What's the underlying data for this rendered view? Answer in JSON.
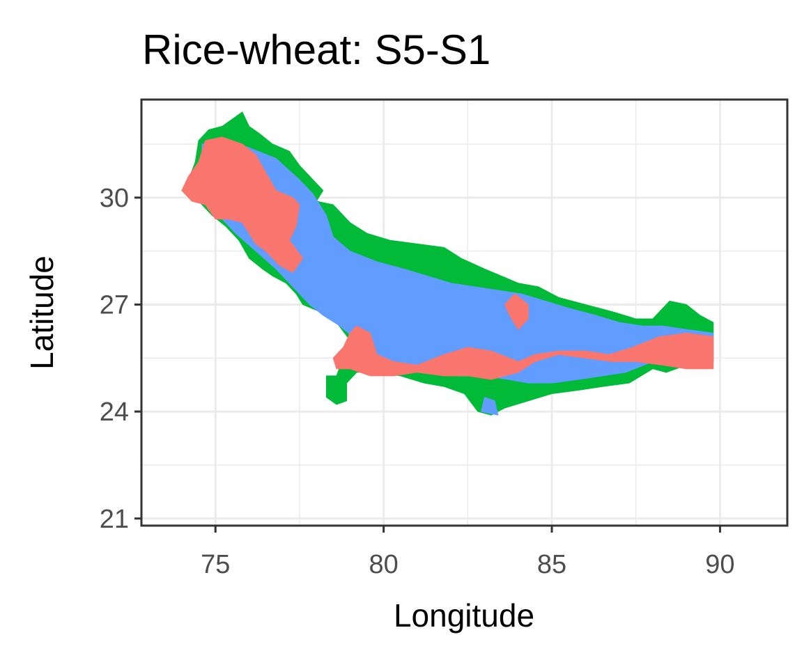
{
  "chart_data": {
    "type": "map",
    "title": "Rice-wheat: S5-S1",
    "xlabel": "Longitude",
    "ylabel": "Latitude",
    "xlim": [
      72.8,
      92.0
    ],
    "ylim": [
      20.8,
      32.75
    ],
    "xticks": [
      75,
      80,
      85,
      90
    ],
    "yticks": [
      21,
      24,
      27,
      30
    ],
    "x_minor": [
      77.5,
      82.5,
      87.5
    ],
    "y_minor": [
      22.5,
      25.5,
      28.5,
      31.5
    ],
    "grid": true,
    "legend": "none",
    "colors": {
      "red": "#f8766d",
      "green": "#00ba38",
      "blue": "#619cff"
    },
    "regions": [
      {
        "category": "green",
        "polygons": [
          [
            [
              74.0,
              30.2
            ],
            [
              74.2,
              30.5
            ],
            [
              74.4,
              31.0
            ],
            [
              74.5,
              31.6
            ],
            [
              74.8,
              31.9
            ],
            [
              75.2,
              32.0
            ],
            [
              75.5,
              32.2
            ],
            [
              75.8,
              32.4
            ],
            [
              76.0,
              32.0
            ],
            [
              76.3,
              31.8
            ],
            [
              76.7,
              31.5
            ],
            [
              77.2,
              31.3
            ],
            [
              77.5,
              30.9
            ],
            [
              77.8,
              30.6
            ],
            [
              78.2,
              30.2
            ],
            [
              78.0,
              29.9
            ],
            [
              78.5,
              29.8
            ],
            [
              79.0,
              29.3
            ],
            [
              79.5,
              29.0
            ],
            [
              80.2,
              28.8
            ],
            [
              81.0,
              28.7
            ],
            [
              81.8,
              28.6
            ],
            [
              82.3,
              28.3
            ],
            [
              83.0,
              28.0
            ],
            [
              83.5,
              27.8
            ],
            [
              84.0,
              27.6
            ],
            [
              84.6,
              27.5
            ],
            [
              85.2,
              27.2
            ],
            [
              86.0,
              27.0
            ],
            [
              86.8,
              26.8
            ],
            [
              87.5,
              26.6
            ],
            [
              88.0,
              26.6
            ],
            [
              88.5,
              27.1
            ],
            [
              89.0,
              27.0
            ],
            [
              89.4,
              26.7
            ],
            [
              89.8,
              26.5
            ],
            [
              89.8,
              25.4
            ],
            [
              89.0,
              25.3
            ],
            [
              88.4,
              25.1
            ],
            [
              88.0,
              25.2
            ],
            [
              87.3,
              24.8
            ],
            [
              86.5,
              24.7
            ],
            [
              85.8,
              24.6
            ],
            [
              85.0,
              24.5
            ],
            [
              84.3,
              24.3
            ],
            [
              83.6,
              24.1
            ],
            [
              83.2,
              23.9
            ],
            [
              82.8,
              24.0
            ],
            [
              82.4,
              24.5
            ],
            [
              81.8,
              24.7
            ],
            [
              81.2,
              24.8
            ],
            [
              80.5,
              25.0
            ],
            [
              79.8,
              25.1
            ],
            [
              79.2,
              25.1
            ],
            [
              78.9,
              24.8
            ],
            [
              78.9,
              24.3
            ],
            [
              78.6,
              24.2
            ],
            [
              78.3,
              24.4
            ],
            [
              78.3,
              24.9
            ],
            [
              78.6,
              25.0
            ],
            [
              78.8,
              25.5
            ],
            [
              79.0,
              26.0
            ],
            [
              78.6,
              26.5
            ],
            [
              78.1,
              26.8
            ],
            [
              77.6,
              27.0
            ],
            [
              77.4,
              27.3
            ],
            [
              77.1,
              27.6
            ],
            [
              76.7,
              27.8
            ],
            [
              76.4,
              28.0
            ],
            [
              76.0,
              28.3
            ],
            [
              75.7,
              28.8
            ],
            [
              75.3,
              29.2
            ],
            [
              74.9,
              29.5
            ],
            [
              74.5,
              29.9
            ]
          ],
          [
            [
              78.3,
              25.0
            ],
            [
              78.7,
              25.0
            ],
            [
              78.9,
              24.4
            ],
            [
              78.6,
              24.2
            ],
            [
              78.3,
              24.5
            ]
          ]
        ]
      },
      {
        "category": "blue",
        "polygons": [
          [
            [
              74.6,
              31.5
            ],
            [
              75.3,
              31.6
            ],
            [
              76.0,
              31.4
            ],
            [
              76.8,
              31.1
            ],
            [
              77.5,
              30.5
            ],
            [
              77.9,
              30.1
            ],
            [
              78.3,
              29.5
            ],
            [
              78.5,
              28.9
            ],
            [
              79.0,
              28.5
            ],
            [
              79.8,
              28.2
            ],
            [
              80.6,
              28.0
            ],
            [
              81.3,
              27.8
            ],
            [
              82.0,
              27.6
            ],
            [
              82.7,
              27.5
            ],
            [
              83.4,
              27.4
            ],
            [
              84.1,
              27.3
            ],
            [
              84.8,
              27.1
            ],
            [
              85.5,
              26.9
            ],
            [
              86.3,
              26.7
            ],
            [
              87.0,
              26.5
            ],
            [
              87.7,
              26.4
            ],
            [
              88.3,
              26.4
            ],
            [
              89.0,
              26.3
            ],
            [
              89.8,
              26.2
            ],
            [
              89.8,
              25.5
            ],
            [
              89.0,
              25.4
            ],
            [
              88.0,
              25.4
            ],
            [
              87.2,
              25.1
            ],
            [
              86.5,
              25.0
            ],
            [
              85.8,
              24.9
            ],
            [
              85.0,
              24.8
            ],
            [
              84.3,
              24.8
            ],
            [
              83.7,
              24.9
            ],
            [
              83.0,
              25.0
            ],
            [
              82.2,
              25.0
            ],
            [
              81.3,
              25.1
            ],
            [
              80.5,
              25.1
            ],
            [
              79.8,
              25.1
            ],
            [
              79.2,
              25.2
            ],
            [
              78.9,
              25.5
            ],
            [
              79.2,
              26.0
            ],
            [
              78.7,
              26.4
            ],
            [
              78.2,
              26.7
            ],
            [
              77.8,
              27.0
            ],
            [
              77.2,
              27.6
            ],
            [
              76.8,
              28.0
            ],
            [
              76.2,
              28.5
            ],
            [
              75.6,
              29.0
            ],
            [
              75.0,
              29.6
            ],
            [
              74.6,
              30.3
            ]
          ],
          [
            [
              83.0,
              24.4
            ],
            [
              83.3,
              24.3
            ],
            [
              83.4,
              23.9
            ],
            [
              82.9,
              24.0
            ]
          ]
        ]
      },
      {
        "category": "red",
        "polygons": [
          [
            [
              74.0,
              30.2
            ],
            [
              74.2,
              30.6
            ],
            [
              74.5,
              31.0
            ],
            [
              74.7,
              31.6
            ],
            [
              75.2,
              31.7
            ],
            [
              75.8,
              31.5
            ],
            [
              76.2,
              31.2
            ],
            [
              76.5,
              30.7
            ],
            [
              76.8,
              30.2
            ],
            [
              77.3,
              30.0
            ],
            [
              77.5,
              29.8
            ],
            [
              77.4,
              29.2
            ],
            [
              77.2,
              28.8
            ],
            [
              77.6,
              28.3
            ],
            [
              77.3,
              27.9
            ],
            [
              76.9,
              28.1
            ],
            [
              76.5,
              28.5
            ],
            [
              76.2,
              28.7
            ],
            [
              76.0,
              29.0
            ],
            [
              75.8,
              29.3
            ],
            [
              75.4,
              29.4
            ],
            [
              75.0,
              29.4
            ],
            [
              74.7,
              29.8
            ],
            [
              74.3,
              29.9
            ]
          ],
          [
            [
              78.8,
              25.8
            ],
            [
              79.0,
              26.2
            ],
            [
              79.2,
              26.4
            ],
            [
              79.6,
              26.2
            ],
            [
              79.8,
              25.6
            ],
            [
              80.3,
              25.4
            ],
            [
              81.0,
              25.3
            ],
            [
              81.8,
              25.6
            ],
            [
              82.5,
              25.8
            ],
            [
              83.2,
              25.7
            ],
            [
              84.0,
              25.4
            ],
            [
              84.5,
              25.6
            ],
            [
              85.2,
              25.7
            ],
            [
              86.0,
              25.7
            ],
            [
              86.7,
              25.6
            ],
            [
              87.4,
              25.8
            ],
            [
              88.2,
              26.1
            ],
            [
              89.0,
              26.2
            ],
            [
              89.8,
              26.1
            ],
            [
              89.8,
              25.2
            ],
            [
              89.0,
              25.2
            ],
            [
              88.3,
              25.3
            ],
            [
              87.5,
              25.4
            ],
            [
              86.8,
              25.4
            ],
            [
              86.0,
              25.5
            ],
            [
              85.2,
              25.6
            ],
            [
              84.5,
              25.4
            ],
            [
              84.0,
              25.1
            ],
            [
              83.2,
              24.9
            ],
            [
              82.5,
              25.0
            ],
            [
              81.8,
              25.0
            ],
            [
              81.0,
              25.1
            ],
            [
              80.3,
              25.0
            ],
            [
              79.6,
              25.0
            ],
            [
              79.0,
              25.2
            ],
            [
              78.6,
              25.2
            ],
            [
              78.5,
              25.5
            ]
          ],
          [
            [
              83.6,
              27.0
            ],
            [
              83.9,
              27.3
            ],
            [
              84.3,
              27.0
            ],
            [
              84.3,
              26.6
            ],
            [
              84.0,
              26.3
            ],
            [
              83.8,
              26.6
            ]
          ]
        ]
      }
    ]
  }
}
